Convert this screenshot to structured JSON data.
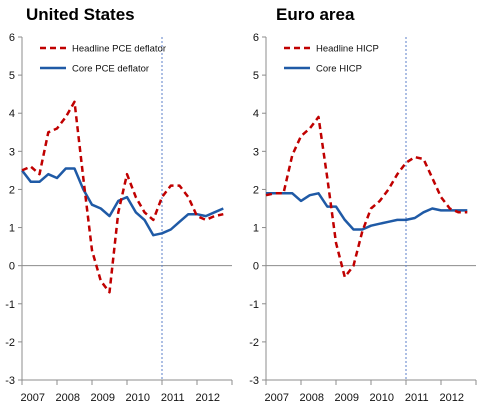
{
  "colors": {
    "headline": "#c00000",
    "core": "#1f5aa6",
    "axis": "#8c8c8c",
    "vline": "#5b7fc9"
  },
  "chart_data": [
    {
      "type": "line",
      "title": "United States",
      "ylim": [
        -3,
        6
      ],
      "yticks": [
        "6",
        "5",
        "4",
        "3",
        "2",
        "1",
        "0",
        "-1",
        "-2",
        "-3"
      ],
      "xlim": [
        2007,
        2013
      ],
      "xticks": [
        "2007",
        "2008",
        "2009",
        "2010",
        "2011",
        "2012"
      ],
      "vline_x": 2011,
      "legend_position": "top-left",
      "grid": false,
      "series": [
        {
          "name": "Headline PCE deflator",
          "style": "dashed",
          "color": "#c00000",
          "x": [
            2007.0,
            2007.25,
            2007.5,
            2007.75,
            2008.0,
            2008.25,
            2008.5,
            2008.75,
            2009.0,
            2009.25,
            2009.5,
            2009.75,
            2010.0,
            2010.25,
            2010.5,
            2010.75,
            2011.0,
            2011.25,
            2011.5,
            2011.75,
            2012.0,
            2012.25,
            2012.5,
            2012.75
          ],
          "y": [
            2.5,
            2.6,
            2.4,
            3.5,
            3.6,
            3.9,
            4.3,
            2.3,
            0.4,
            -0.4,
            -0.7,
            1.4,
            2.4,
            1.8,
            1.4,
            1.2,
            1.8,
            2.1,
            2.1,
            1.8,
            1.3,
            1.2,
            1.3,
            1.35
          ]
        },
        {
          "name": "Core PCE deflator",
          "style": "solid",
          "color": "#1f5aa6",
          "x": [
            2007.0,
            2007.25,
            2007.5,
            2007.75,
            2008.0,
            2008.25,
            2008.5,
            2008.75,
            2009.0,
            2009.25,
            2009.5,
            2009.75,
            2010.0,
            2010.25,
            2010.5,
            2010.75,
            2011.0,
            2011.25,
            2011.5,
            2011.75,
            2012.0,
            2012.25,
            2012.5,
            2012.75
          ],
          "y": [
            2.5,
            2.2,
            2.2,
            2.4,
            2.3,
            2.55,
            2.55,
            2.0,
            1.6,
            1.5,
            1.3,
            1.7,
            1.8,
            1.4,
            1.2,
            0.8,
            0.85,
            0.95,
            1.15,
            1.35,
            1.35,
            1.3,
            1.4,
            1.5
          ]
        }
      ]
    },
    {
      "type": "line",
      "title": "Euro area",
      "ylim": [
        -3,
        6
      ],
      "yticks": [
        "6",
        "5",
        "4",
        "3",
        "2",
        "1",
        "0",
        "-1",
        "-2",
        "-3"
      ],
      "xlim": [
        2007,
        2013
      ],
      "xticks": [
        "2007",
        "2008",
        "2009",
        "2010",
        "2011",
        "2012"
      ],
      "vline_x": 2011,
      "legend_position": "top-left",
      "grid": false,
      "series": [
        {
          "name": "Headline HICP",
          "style": "dashed",
          "color": "#c00000",
          "x": [
            2007.0,
            2007.25,
            2007.5,
            2007.75,
            2008.0,
            2008.25,
            2008.5,
            2008.75,
            2009.0,
            2009.25,
            2009.5,
            2009.75,
            2010.0,
            2010.25,
            2010.5,
            2010.75,
            2011.0,
            2011.25,
            2011.5,
            2011.75,
            2012.0,
            2012.25,
            2012.5,
            2012.75
          ],
          "y": [
            1.85,
            1.9,
            1.9,
            2.9,
            3.4,
            3.6,
            3.9,
            2.3,
            0.6,
            -0.3,
            0.0,
            0.9,
            1.5,
            1.7,
            2.0,
            2.4,
            2.7,
            2.85,
            2.8,
            2.3,
            1.8,
            1.5,
            1.4,
            1.4
          ]
        },
        {
          "name": "Core HICP",
          "style": "solid",
          "color": "#1f5aa6",
          "x": [
            2007.0,
            2007.25,
            2007.5,
            2007.75,
            2008.0,
            2008.25,
            2008.5,
            2008.75,
            2009.0,
            2009.25,
            2009.5,
            2009.75,
            2010.0,
            2010.25,
            2010.5,
            2010.75,
            2011.0,
            2011.25,
            2011.5,
            2011.75,
            2012.0,
            2012.25,
            2012.5,
            2012.75
          ],
          "y": [
            1.9,
            1.9,
            1.9,
            1.9,
            1.7,
            1.85,
            1.9,
            1.55,
            1.55,
            1.2,
            0.95,
            0.95,
            1.05,
            1.1,
            1.15,
            1.2,
            1.2,
            1.25,
            1.4,
            1.5,
            1.45,
            1.45,
            1.45,
            1.45
          ]
        }
      ]
    }
  ]
}
